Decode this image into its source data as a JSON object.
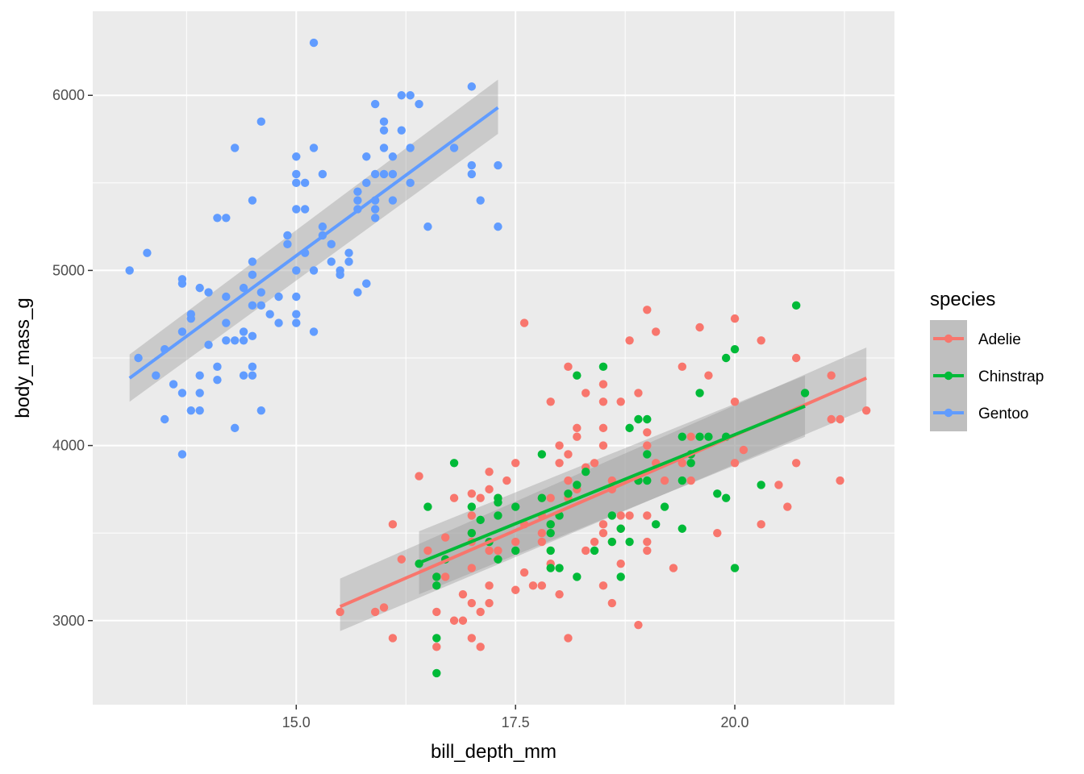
{
  "chart_data": {
    "type": "scatter",
    "xlabel": "bill_depth_mm",
    "ylabel": "body_mass_g",
    "xlim": [
      12.68,
      21.82
    ],
    "ylim": [
      2520,
      6480
    ],
    "x_ticks": [
      15.0,
      17.5,
      20.0
    ],
    "x_tick_labels": [
      "15.0",
      "17.5",
      "20.0"
    ],
    "y_ticks": [
      3000,
      4000,
      5000,
      6000
    ],
    "y_tick_labels": [
      "3000",
      "4000",
      "5000",
      "6000"
    ],
    "grid": true,
    "legend": {
      "title": "species",
      "position": "right"
    },
    "series": [
      {
        "name": "Adelie",
        "color": "#F8766D",
        "fit": {
          "x": [
            15.5,
            21.5
          ],
          "y": [
            3080,
            4385
          ],
          "ci_lo": [
            2940,
            4210
          ],
          "ci_hi": [
            3240,
            4560
          ]
        },
        "points": [
          [
            15.5,
            3050
          ],
          [
            15.9,
            3050
          ],
          [
            16.0,
            3075
          ],
          [
            16.1,
            2900
          ],
          [
            16.1,
            3550
          ],
          [
            16.2,
            3350
          ],
          [
            16.4,
            3825
          ],
          [
            16.5,
            3400
          ],
          [
            16.6,
            2850
          ],
          [
            16.6,
            3050
          ],
          [
            16.6,
            3250
          ],
          [
            16.7,
            3250
          ],
          [
            16.8,
            3000
          ],
          [
            16.8,
            3700
          ],
          [
            16.9,
            3150
          ],
          [
            16.9,
            3000
          ],
          [
            17.0,
            2900
          ],
          [
            17.0,
            3450
          ],
          [
            17.0,
            3725
          ],
          [
            17.0,
            3300
          ],
          [
            17.0,
            3100
          ],
          [
            17.0,
            3600
          ],
          [
            17.1,
            2850
          ],
          [
            17.1,
            3050
          ],
          [
            17.1,
            3700
          ],
          [
            17.2,
            3750
          ],
          [
            17.2,
            3400
          ],
          [
            17.2,
            3850
          ],
          [
            17.2,
            3200
          ],
          [
            17.2,
            3100
          ],
          [
            17.3,
            3700
          ],
          [
            17.3,
            3400
          ],
          [
            17.4,
            3800
          ],
          [
            17.5,
            3900
          ],
          [
            17.5,
            3175
          ],
          [
            17.5,
            3450
          ],
          [
            17.6,
            3550
          ],
          [
            17.6,
            3275
          ],
          [
            17.6,
            4700
          ],
          [
            17.7,
            3200
          ],
          [
            17.8,
            3450
          ],
          [
            17.8,
            3200
          ],
          [
            17.8,
            3700
          ],
          [
            17.9,
            3550
          ],
          [
            17.9,
            3325
          ],
          [
            17.9,
            4250
          ],
          [
            17.9,
            3700
          ],
          [
            18.0,
            3150
          ],
          [
            18.0,
            4000
          ],
          [
            18.0,
            3900
          ],
          [
            18.1,
            3950
          ],
          [
            18.1,
            3700
          ],
          [
            18.1,
            4450
          ],
          [
            18.1,
            2900
          ],
          [
            18.2,
            3750
          ],
          [
            18.2,
            4050
          ],
          [
            18.3,
            3400
          ],
          [
            18.3,
            4300
          ],
          [
            18.4,
            3900
          ],
          [
            18.5,
            3550
          ],
          [
            18.5,
            4000
          ],
          [
            18.5,
            3200
          ],
          [
            18.5,
            4350
          ],
          [
            18.5,
            4100
          ],
          [
            18.5,
            4250
          ],
          [
            18.5,
            3500
          ],
          [
            18.6,
            3100
          ],
          [
            18.6,
            3450
          ],
          [
            18.6,
            3800
          ],
          [
            18.7,
            4250
          ],
          [
            18.7,
            3600
          ],
          [
            18.7,
            3325
          ],
          [
            18.7,
            3525
          ],
          [
            18.8,
            3600
          ],
          [
            18.8,
            4600
          ],
          [
            18.9,
            2975
          ],
          [
            18.9,
            4300
          ],
          [
            18.9,
            3800
          ],
          [
            19.0,
            3400
          ],
          [
            19.0,
            3450
          ],
          [
            19.0,
            4000
          ],
          [
            19.0,
            4775
          ],
          [
            19.0,
            3600
          ],
          [
            19.1,
            3900
          ],
          [
            19.1,
            4650
          ],
          [
            19.2,
            3800
          ],
          [
            19.3,
            3300
          ],
          [
            19.4,
            3900
          ],
          [
            19.4,
            4450
          ],
          [
            19.5,
            3800
          ],
          [
            19.5,
            4050
          ],
          [
            19.6,
            4675
          ],
          [
            19.7,
            4400
          ],
          [
            19.8,
            3500
          ],
          [
            20.0,
            3900
          ],
          [
            20.0,
            4725
          ],
          [
            20.0,
            4250
          ],
          [
            20.1,
            3975
          ],
          [
            20.3,
            4600
          ],
          [
            20.3,
            3550
          ],
          [
            20.5,
            3775
          ],
          [
            20.6,
            3650
          ],
          [
            20.7,
            3900
          ],
          [
            20.7,
            4500
          ],
          [
            21.1,
            4400
          ],
          [
            21.1,
            4150
          ],
          [
            21.2,
            4150
          ],
          [
            21.2,
            3800
          ],
          [
            21.5,
            4200
          ],
          [
            17.8,
            3500
          ],
          [
            18.6,
            3750
          ],
          [
            18.4,
            3450
          ],
          [
            19.5,
            3950
          ],
          [
            17.0,
            3500
          ],
          [
            18.2,
            4100
          ],
          [
            16.7,
            3475
          ],
          [
            18.3,
            3875
          ],
          [
            18.1,
            3800
          ],
          [
            17.8,
            3600
          ],
          [
            19.0,
            4075
          ]
        ]
      },
      {
        "name": "Chinstrap",
        "color": "#00BA38",
        "fit": {
          "x": [
            16.4,
            20.8
          ],
          "y": [
            3330,
            4225
          ],
          "ci_lo": [
            3150,
            4050
          ],
          "ci_hi": [
            3510,
            4400
          ]
        },
        "points": [
          [
            16.4,
            3325
          ],
          [
            16.5,
            3650
          ],
          [
            16.6,
            2900
          ],
          [
            16.6,
            3200
          ],
          [
            16.6,
            2700
          ],
          [
            16.6,
            3250
          ],
          [
            16.7,
            3350
          ],
          [
            16.8,
            3900
          ],
          [
            17.0,
            3650
          ],
          [
            17.0,
            3500
          ],
          [
            17.1,
            3575
          ],
          [
            17.2,
            3450
          ],
          [
            17.3,
            3700
          ],
          [
            17.3,
            3600
          ],
          [
            17.3,
            3675
          ],
          [
            17.3,
            3350
          ],
          [
            17.5,
            3400
          ],
          [
            17.5,
            3650
          ],
          [
            17.8,
            3950
          ],
          [
            17.8,
            3700
          ],
          [
            17.9,
            3550
          ],
          [
            17.9,
            3300
          ],
          [
            17.9,
            3500
          ],
          [
            17.9,
            3400
          ],
          [
            18.0,
            3300
          ],
          [
            18.0,
            3600
          ],
          [
            18.1,
            3725
          ],
          [
            18.2,
            3250
          ],
          [
            18.2,
            4400
          ],
          [
            18.2,
            3775
          ],
          [
            18.3,
            3850
          ],
          [
            18.4,
            3400
          ],
          [
            18.5,
            4450
          ],
          [
            18.6,
            3600
          ],
          [
            18.6,
            3450
          ],
          [
            18.7,
            3525
          ],
          [
            18.7,
            3250
          ],
          [
            18.8,
            3450
          ],
          [
            18.8,
            4100
          ],
          [
            18.9,
            4150
          ],
          [
            18.9,
            3800
          ],
          [
            19.0,
            3950
          ],
          [
            19.0,
            4150
          ],
          [
            19.0,
            3800
          ],
          [
            19.1,
            3550
          ],
          [
            19.2,
            3650
          ],
          [
            19.4,
            4050
          ],
          [
            19.4,
            3525
          ],
          [
            19.4,
            3800
          ],
          [
            19.5,
            3950
          ],
          [
            19.5,
            3900
          ],
          [
            19.6,
            4300
          ],
          [
            19.6,
            4050
          ],
          [
            19.7,
            4050
          ],
          [
            19.8,
            3725
          ],
          [
            19.9,
            3700
          ],
          [
            19.9,
            4050
          ],
          [
            19.9,
            4500
          ],
          [
            20.0,
            4550
          ],
          [
            20.0,
            3300
          ],
          [
            20.3,
            3775
          ],
          [
            20.7,
            4800
          ],
          [
            20.8,
            4300
          ]
        ]
      },
      {
        "name": "Gentoo",
        "color": "#619CFF",
        "fit": {
          "x": [
            13.1,
            17.3
          ],
          "y": [
            4385,
            5930
          ],
          "ci_lo": [
            4250,
            5780
          ],
          "ci_hi": [
            4520,
            6090
          ]
        },
        "points": [
          [
            13.1,
            5000
          ],
          [
            13.2,
            4500
          ],
          [
            13.3,
            5100
          ],
          [
            13.4,
            4400
          ],
          [
            13.5,
            4550
          ],
          [
            13.5,
            4150
          ],
          [
            13.6,
            4350
          ],
          [
            13.7,
            4950
          ],
          [
            13.7,
            4300
          ],
          [
            13.7,
            3950
          ],
          [
            13.7,
            4925
          ],
          [
            13.7,
            4650
          ],
          [
            13.8,
            4750
          ],
          [
            13.8,
            4200
          ],
          [
            13.8,
            4725
          ],
          [
            13.9,
            4300
          ],
          [
            13.9,
            4900
          ],
          [
            13.9,
            4200
          ],
          [
            13.9,
            4400
          ],
          [
            14.0,
            4575
          ],
          [
            14.0,
            4875
          ],
          [
            14.1,
            4375
          ],
          [
            14.1,
            4450
          ],
          [
            14.1,
            5300
          ],
          [
            14.2,
            4700
          ],
          [
            14.2,
            4600
          ],
          [
            14.2,
            5300
          ],
          [
            14.2,
            4850
          ],
          [
            14.3,
            4600
          ],
          [
            14.3,
            4100
          ],
          [
            14.3,
            5700
          ],
          [
            14.4,
            4650
          ],
          [
            14.4,
            4900
          ],
          [
            14.4,
            4400
          ],
          [
            14.4,
            4600
          ],
          [
            14.5,
            5050
          ],
          [
            14.5,
            4625
          ],
          [
            14.5,
            4450
          ],
          [
            14.5,
            5400
          ],
          [
            14.5,
            4975
          ],
          [
            14.5,
            4400
          ],
          [
            14.6,
            5850
          ],
          [
            14.6,
            4800
          ],
          [
            14.6,
            4875
          ],
          [
            14.6,
            4200
          ],
          [
            14.7,
            4750
          ],
          [
            14.8,
            4700
          ],
          [
            14.8,
            4850
          ],
          [
            14.9,
            5200
          ],
          [
            14.9,
            5150
          ],
          [
            15.0,
            5000
          ],
          [
            15.0,
            5650
          ],
          [
            15.0,
            5500
          ],
          [
            15.0,
            4750
          ],
          [
            15.0,
            4850
          ],
          [
            15.0,
            5550
          ],
          [
            15.0,
            4700
          ],
          [
            15.1,
            5350
          ],
          [
            15.1,
            5100
          ],
          [
            15.1,
            5500
          ],
          [
            15.2,
            6300
          ],
          [
            15.2,
            5000
          ],
          [
            15.2,
            4650
          ],
          [
            15.2,
            5700
          ],
          [
            15.3,
            5550
          ],
          [
            15.3,
            5250
          ],
          [
            15.3,
            5200
          ],
          [
            15.4,
            5050
          ],
          [
            15.4,
            5150
          ],
          [
            15.5,
            5000
          ],
          [
            15.5,
            4975
          ],
          [
            15.6,
            5100
          ],
          [
            15.6,
            5050
          ],
          [
            15.7,
            4875
          ],
          [
            15.7,
            5450
          ],
          [
            15.7,
            5350
          ],
          [
            15.7,
            5400
          ],
          [
            15.8,
            5650
          ],
          [
            15.8,
            4925
          ],
          [
            15.8,
            5500
          ],
          [
            15.8,
            4925
          ],
          [
            15.9,
            5400
          ],
          [
            15.9,
            5550
          ],
          [
            15.9,
            5950
          ],
          [
            15.9,
            5350
          ],
          [
            16.0,
            5800
          ],
          [
            16.0,
            5700
          ],
          [
            16.0,
            5850
          ],
          [
            16.1,
            5400
          ],
          [
            16.1,
            5650
          ],
          [
            16.1,
            5550
          ],
          [
            16.2,
            6000
          ],
          [
            16.2,
            5800
          ],
          [
            16.3,
            6000
          ],
          [
            16.3,
            5700
          ],
          [
            16.3,
            5500
          ],
          [
            16.4,
            5950
          ],
          [
            16.5,
            5250
          ],
          [
            16.8,
            5700
          ],
          [
            17.0,
            5600
          ],
          [
            17.0,
            5550
          ],
          [
            17.0,
            6050
          ],
          [
            17.1,
            5400
          ],
          [
            17.3,
            5600
          ],
          [
            17.3,
            5250
          ],
          [
            15.0,
            5350
          ],
          [
            14.5,
            4800
          ],
          [
            15.9,
            5300
          ],
          [
            16.0,
            5550
          ]
        ]
      }
    ]
  }
}
